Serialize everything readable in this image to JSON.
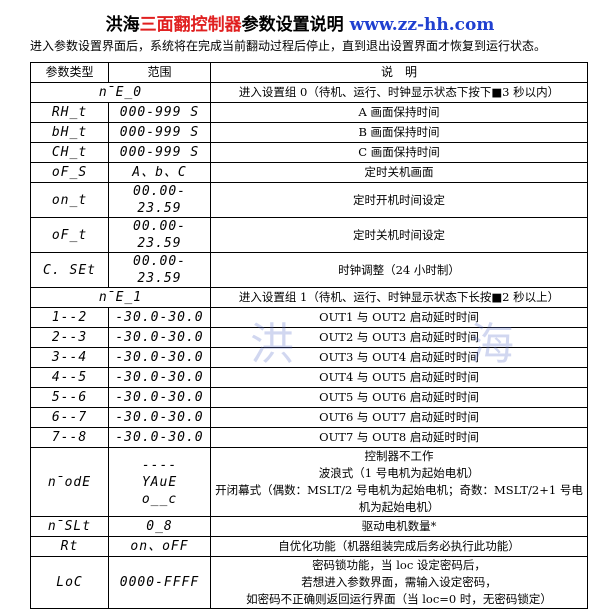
{
  "header": {
    "title_parts": [
      "洪海",
      "三面翻控制器",
      "参数设置说明",
      "www.zz-hh.com"
    ],
    "subtitle": "进入参数设置界面后，系统将在完成当前翻动过程后停止，直到退出设置界面才恢复到运行状态。"
  },
  "table": {
    "columns": [
      "参数类型",
      "范围",
      "说　明"
    ],
    "rows": [
      {
        "code": "n̄E_0",
        "desc": "进入设置组 0（待机、运行、时钟显示状态下按下■3 秒以内）"
      },
      {
        "code": "RH_t",
        "range": "000-999 S",
        "desc": "A 画面保持时间"
      },
      {
        "code": "bH_t",
        "range": "000-999 S",
        "desc": "B 画面保持时间"
      },
      {
        "code": "CH_t",
        "range": "000-999 S",
        "desc": "C 画面保持时间"
      },
      {
        "code": "oF_S",
        "range": "A、b、C",
        "desc": "定时关机画面"
      },
      {
        "code": "on_t",
        "range": "00.00-23.59",
        "desc": "定时开机时间设定"
      },
      {
        "code": "oF_t",
        "range": "00.00-23.59",
        "desc": "定时关机时间设定"
      },
      {
        "code": "C. SEt",
        "range": "00.00-23.59",
        "desc": "时钟调整（24 小时制）"
      },
      {
        "code": "n̄E_1",
        "desc": "进入设置组 1（待机、运行、时钟显示状态下长按■2 秒以上）"
      },
      {
        "code": "1--2",
        "range": "-30.0-30.0",
        "desc": "OUT1 与 OUT2 启动延时时间"
      },
      {
        "code": "2--3",
        "range": "-30.0-30.0",
        "desc": "OUT2 与 OUT3 启动延时时间"
      },
      {
        "code": "3--4",
        "range": "-30.0-30.0",
        "desc": "OUT3 与 OUT4 启动延时时间"
      },
      {
        "code": "4--5",
        "range": "-30.0-30.0",
        "desc": "OUT4 与 OUT5 启动延时时间"
      },
      {
        "code": "5--6",
        "range": "-30.0-30.0",
        "desc": "OUT5 与 OUT6 启动延时时间"
      },
      {
        "code": "6--7",
        "range": "-30.0-30.0",
        "desc": "OUT6 与 OUT7 启动延时时间"
      },
      {
        "code": "7--8",
        "range": "-30.0-30.0",
        "desc": "OUT7 与 OUT8 启动延时时间"
      },
      {
        "code": "n̄odE",
        "range": [
          "----",
          "YAuE",
          "o__c"
        ],
        "desc": [
          "控制器不工作",
          "波浪式（1 号电机为起始电机）",
          "开闭幕式（偶数：MSLT/2 号电机为起始电机；奇数：MSLT/2+1 号电机为起始电机）"
        ]
      },
      {
        "code": "n̄SLt",
        "range": "0_8",
        "desc": "驱动电机数量*"
      },
      {
        "code": "Rt",
        "range": "on、oFF",
        "desc": "自优化功能（机器组装完成后务必执行此功能）"
      },
      {
        "code": "LoC",
        "range": "0000-FFFF",
        "desc": [
          "密码锁功能，当 loc 设定密码后，",
          "若想进入参数界面，需输入设定密码，",
          "如密码不正确则返回运行界面（当 loc=0 时，无密码锁定）"
        ]
      }
    ]
  },
  "watermark": [
    "洪",
    "海"
  ]
}
